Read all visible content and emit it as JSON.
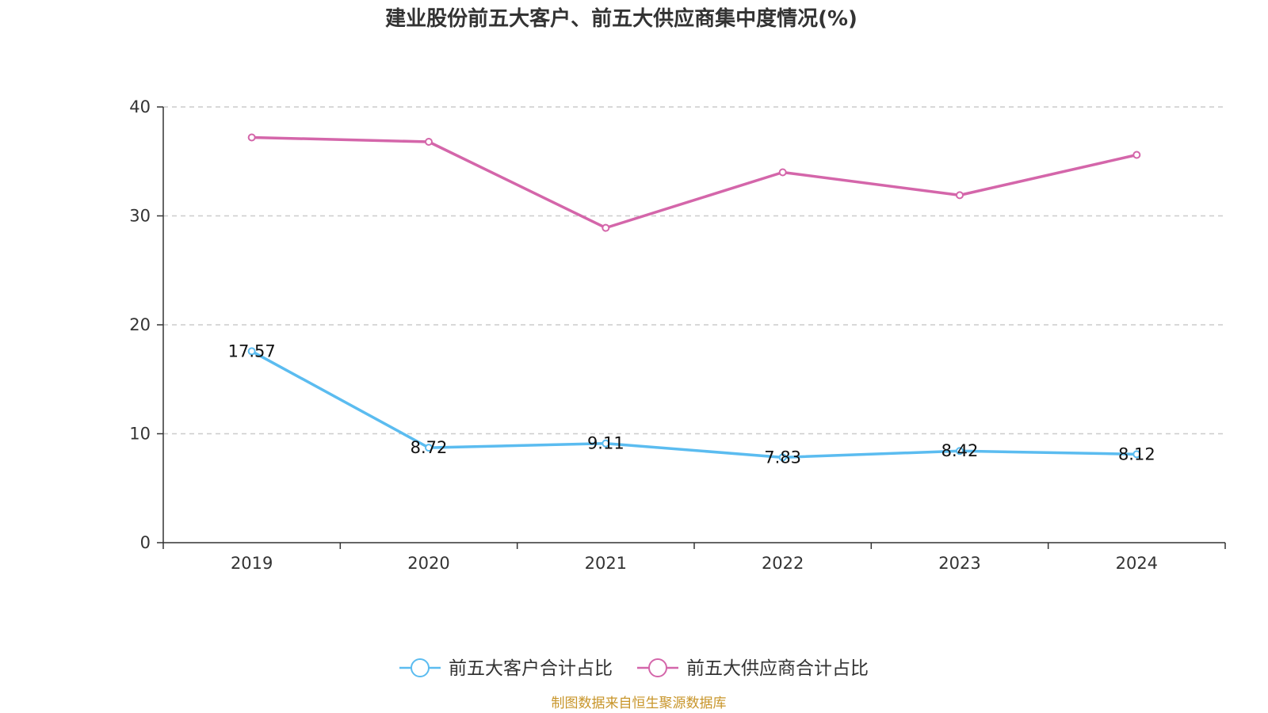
{
  "title": "建业股份前五大客户、前五大供应商集中度情况(%)",
  "source": "制图数据来自恒生聚源数据库",
  "colors": {
    "customer": "#5bbcf0",
    "supplier": "#d466aa",
    "source": "#c8952a",
    "grid": "#cccccc",
    "axis": "#333333"
  },
  "chart_data": {
    "type": "line",
    "title": "建业股份前五大客户、前五大供应商集中度情况(%)",
    "xlabel": "",
    "ylabel": "",
    "categories": [
      "2019",
      "2020",
      "2021",
      "2022",
      "2023",
      "2024"
    ],
    "ylim": [
      0,
      40
    ],
    "yticks": [
      0,
      10,
      20,
      30,
      40
    ],
    "grid": true,
    "legend_position": "bottom",
    "series": [
      {
        "name": "前五大客户合计占比",
        "color": "#5bbcf0",
        "values": [
          17.57,
          8.72,
          9.11,
          7.83,
          8.42,
          8.12
        ],
        "show_labels": true,
        "labels": [
          "17.57",
          "8.72",
          "9.11",
          "7.83",
          "8.42",
          "8.12"
        ]
      },
      {
        "name": "前五大供应商合计占比",
        "color": "#d466aa",
        "values": [
          37.2,
          36.8,
          28.9,
          34.0,
          31.9,
          35.6
        ],
        "show_labels": false
      }
    ]
  }
}
